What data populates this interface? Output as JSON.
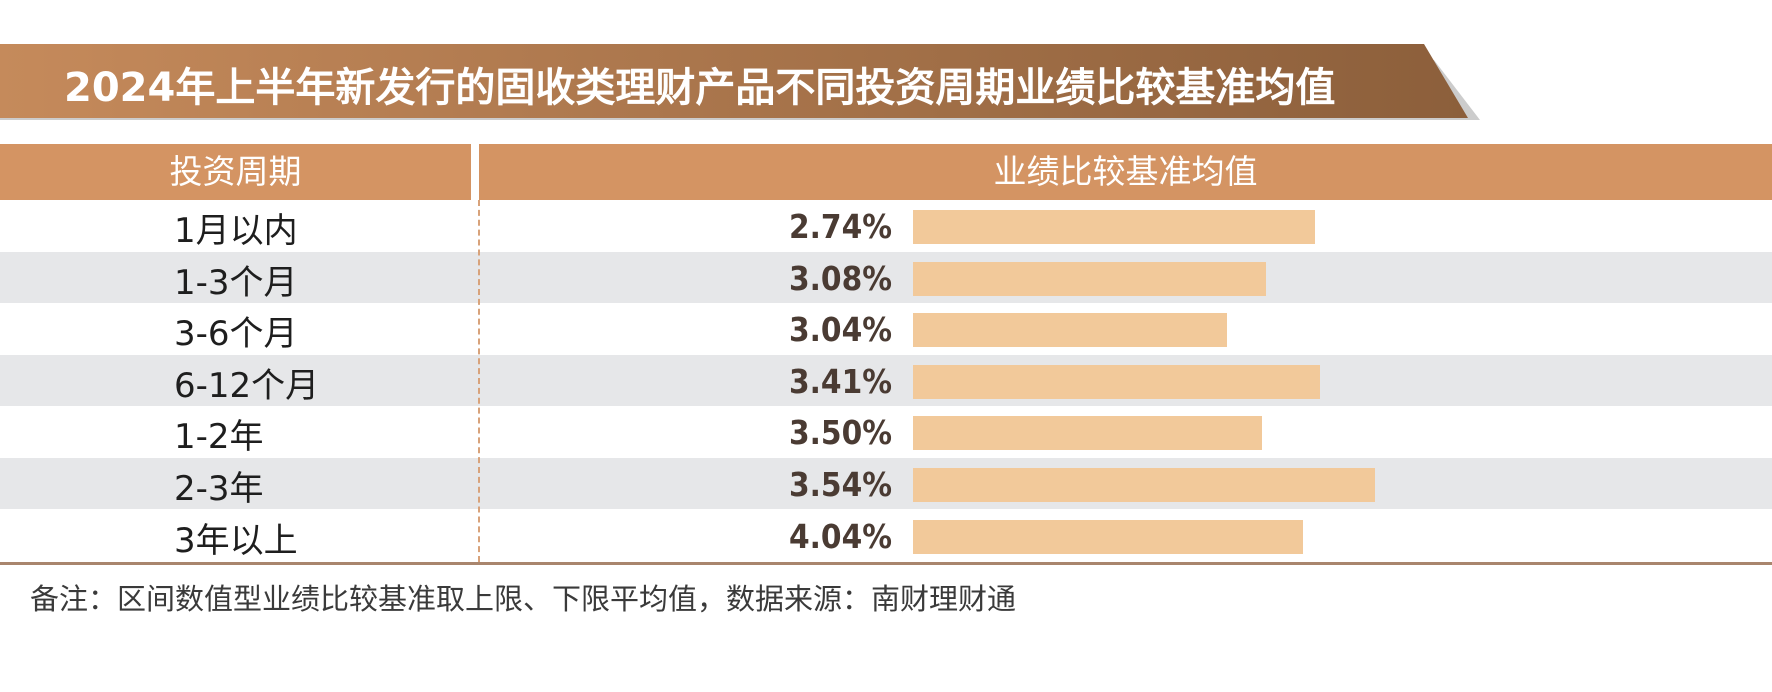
{
  "header": {
    "title": "2024年上半年新发行的固收类理财产品不同投资周期业绩比较基准均值"
  },
  "table": {
    "col_period": "投资周期",
    "col_value": "业绩比较基准均值"
  },
  "footnote": "备注：区间数值型业绩比较基准取上限、下限平均值，数据来源：南财理财通",
  "colors": {
    "banner_light": "#c58a5b",
    "banner_dark": "#8c5f3b",
    "header_bg": "#d49463",
    "bar": "#f2c99a",
    "row_alt": "#e6e7e9"
  },
  "chart_data": {
    "type": "bar",
    "title": "2024年上半年新发行的固收类理财产品不同投资周期业绩比较基准均值",
    "categories": [
      "1月以内",
      "1-3个月",
      "3-6个月",
      "6-12个月",
      "1-2年",
      "2-3年",
      "3年以上"
    ],
    "value_labels": [
      "2.74%",
      "3.08%",
      "3.04%",
      "3.41%",
      "3.50%",
      "3.54%",
      "4.04%"
    ],
    "values": [
      2.74,
      3.08,
      3.04,
      3.41,
      3.5,
      3.54,
      4.04
    ],
    "bar_fraction": [
      0.87,
      0.765,
      0.68,
      0.88,
      0.755,
      1.0,
      0.845
    ],
    "orientation": "horizontal",
    "legend": "none"
  }
}
